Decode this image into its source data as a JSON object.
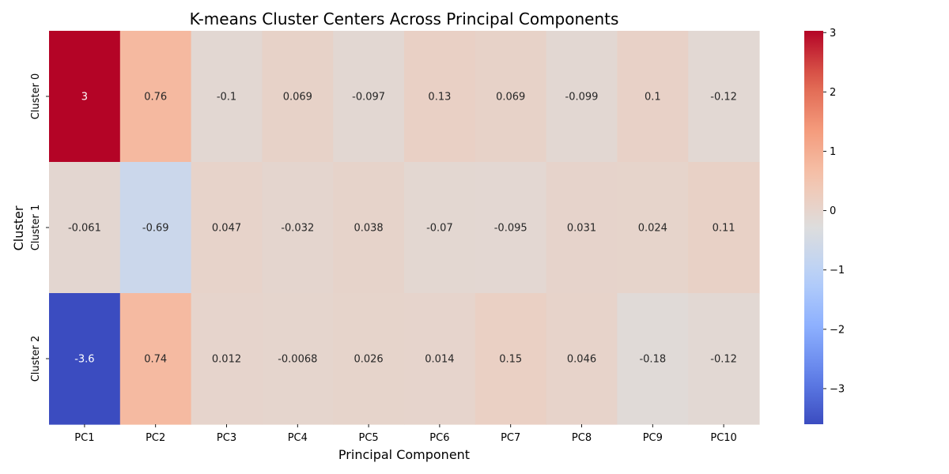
{
  "chart_data": {
    "type": "heatmap",
    "title": "K-means Cluster Centers Across Principal Components",
    "xlabel": "Principal Component",
    "ylabel": "Cluster",
    "x_categories": [
      "PC1",
      "PC2",
      "PC3",
      "PC4",
      "PC5",
      "PC6",
      "PC7",
      "PC8",
      "PC9",
      "PC10"
    ],
    "y_categories": [
      "Cluster 0",
      "Cluster 1",
      "Cluster 2"
    ],
    "values": [
      [
        3.03,
        0.76,
        -0.1,
        0.069,
        -0.097,
        0.13,
        0.069,
        -0.099,
        0.1,
        -0.12
      ],
      [
        -0.061,
        -0.69,
        0.047,
        -0.032,
        0.038,
        -0.07,
        -0.095,
        0.031,
        0.024,
        0.11
      ],
      [
        -3.6,
        0.74,
        0.012,
        -0.0068,
        0.026,
        0.014,
        0.15,
        0.046,
        -0.18,
        -0.12
      ]
    ],
    "annotations": [
      [
        "3",
        "0.76",
        "-0.1",
        "0.069",
        "-0.097",
        "0.13",
        "0.069",
        "-0.099",
        "0.1",
        "-0.12"
      ],
      [
        "-0.061",
        "-0.69",
        "0.047",
        "-0.032",
        "0.038",
        "-0.07",
        "-0.095",
        "0.031",
        "0.024",
        "0.11"
      ],
      [
        "-3.6",
        "0.74",
        "0.012",
        "-0.0068",
        "0.026",
        "0.014",
        "0.15",
        "0.046",
        "-0.18",
        "-0.12"
      ]
    ],
    "colormap": "coolwarm",
    "vmin": -3.6,
    "vmax": 3.03,
    "colorbar_ticks": [
      -3,
      -2,
      -1,
      0,
      1,
      2,
      3
    ],
    "colorbar_tick_labels": [
      "−3",
      "−2",
      "−1",
      "0",
      "1",
      "2",
      "3"
    ],
    "grid": false,
    "legend": "colorbar-right"
  }
}
